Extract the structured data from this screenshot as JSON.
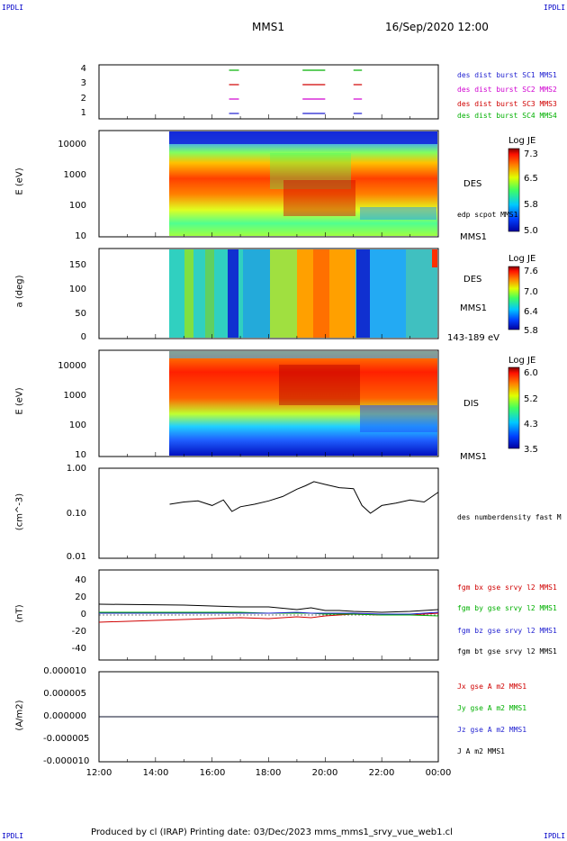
{
  "header": {
    "corner_left": "IPDLI",
    "corner_right": "IPDLI",
    "spacecraft": "MMS1",
    "datetime": "16/Sep/2020 12:00"
  },
  "x_axis": {
    "ticks": [
      "12:00",
      "14:00",
      "16:00",
      "18:00",
      "20:00",
      "22:00",
      "00:00"
    ]
  },
  "panel1": {
    "yticks": [
      "4",
      "3",
      "2",
      "1"
    ],
    "legend": [
      {
        "text": "des dist burst SC1 MMS1",
        "color": "#1f1fd0"
      },
      {
        "text": "des dist burst SC2 MMS2",
        "color": "#d000d0"
      },
      {
        "text": "des dist burst SC3 MMS3",
        "color": "#d00000"
      },
      {
        "text": "des dist burst SC4 MMS4",
        "color": "#00b000"
      }
    ],
    "segments_hours": [
      [
        16.6,
        16.95
      ],
      [
        19.2,
        20.0
      ],
      [
        21.0,
        21.3
      ]
    ]
  },
  "panel2": {
    "ylabel": "E (eV)",
    "yticks": [
      "10000",
      "1000",
      "100",
      "10"
    ],
    "label_right": "DES",
    "label_small": "edp scpot MMS1",
    "label_bottom": "MMS1",
    "colorbar": {
      "title": "Log JE",
      "ticks": [
        "7.3",
        "6.5",
        "5.8",
        "5.0"
      ]
    }
  },
  "panel3": {
    "ylabel": "a (deg)",
    "yticks": [
      "150",
      "100",
      "50",
      "0"
    ],
    "label_right": "DES",
    "label_mid": "MMS1",
    "label_bottom": "143-189 eV",
    "colorbar": {
      "title": "Log JE",
      "ticks": [
        "7.6",
        "7.0",
        "6.4",
        "5.8"
      ]
    }
  },
  "panel4": {
    "ylabel": "E (eV)",
    "yticks": [
      "10000",
      "1000",
      "100",
      "10"
    ],
    "label_right": "DIS",
    "label_bottom": "MMS1",
    "colorbar": {
      "title": "Log JE",
      "ticks": [
        "6.0",
        "5.2",
        "4.3",
        "3.5"
      ]
    }
  },
  "panel5": {
    "ylabel": "(cm^-3)",
    "yticks": [
      "1.00",
      "0.10",
      "0.01"
    ],
    "legend": "des numberdensity fast M"
  },
  "panel6": {
    "ylabel": "(nT)",
    "yticks": [
      "40",
      "20",
      "0",
      "-20",
      "-40"
    ],
    "legend": [
      {
        "text": "fgm bx gse srvy l2 MMS1",
        "color": "#d00000"
      },
      {
        "text": "fgm by gse srvy l2 MMS1",
        "color": "#00b000"
      },
      {
        "text": "fgm bz gse srvy l2 MMS1",
        "color": "#1f1fd0"
      },
      {
        "text": "fgm bt gse srvy l2 MMS1",
        "color": "#000000"
      }
    ]
  },
  "panel7": {
    "ylabel": "(A/m2)",
    "yticks": [
      "0.000010",
      "0.000005",
      "0.000000",
      "-0.000005",
      "-0.000010"
    ],
    "legend": [
      {
        "text": "Jx gse A m2 MMS1",
        "color": "#d00000"
      },
      {
        "text": "Jy gse A m2 MMS1",
        "color": "#00b000"
      },
      {
        "text": "Jz gse A m2 MMS1",
        "color": "#1f1fd0"
      },
      {
        "text": "J A m2 MMS1",
        "color": "#000000"
      }
    ]
  },
  "footer": "Produced by cl (IRAP)   Printing date: 03/Dec/2023   mms_mms1_srvy_vue_web1.cl",
  "chart_data": [
    {
      "type": "timeline",
      "title": "MMS1 16/Sep/2020 12:00",
      "x_range_hours": [
        12,
        24
      ],
      "series": [
        {
          "name": "des dist burst SC1 MMS1",
          "y": 1,
          "intervals": [
            [
              16.6,
              16.95
            ],
            [
              19.2,
              20.0
            ],
            [
              21.0,
              21.3
            ]
          ]
        },
        {
          "name": "des dist burst SC2 MMS2",
          "y": 2,
          "intervals": [
            [
              16.6,
              16.95
            ],
            [
              19.2,
              20.0
            ],
            [
              21.0,
              21.3
            ]
          ]
        },
        {
          "name": "des dist burst SC3 MMS3",
          "y": 3,
          "intervals": [
            [
              16.6,
              16.95
            ],
            [
              19.2,
              20.0
            ],
            [
              21.0,
              21.3
            ]
          ]
        },
        {
          "name": "des dist burst SC4 MMS4",
          "y": 4,
          "intervals": [
            [
              16.6,
              16.95
            ],
            [
              19.2,
              20.0
            ],
            [
              21.0,
              21.3
            ]
          ]
        }
      ]
    },
    {
      "type": "heatmap",
      "ylabel": "E (eV)",
      "yscale": "log",
      "ylim": [
        10,
        30000
      ],
      "data_start_hours": 14.5,
      "colorbar": "Log JE",
      "crange": [
        5.0,
        7.3
      ]
    },
    {
      "type": "heatmap",
      "ylabel": "a (deg)",
      "ylim": [
        0,
        180
      ],
      "data_start_hours": 14.5,
      "colorbar": "Log JE",
      "crange": [
        5.8,
        7.6
      ]
    },
    {
      "type": "heatmap",
      "ylabel": "E (eV)",
      "yscale": "log",
      "ylim": [
        10,
        30000
      ],
      "data_start_hours": 14.5,
      "colorbar": "Log JE",
      "crange": [
        3.5,
        6.0
      ]
    },
    {
      "type": "line",
      "ylabel": "(cm^-3)",
      "yscale": "log",
      "ylim": [
        0.01,
        1.0
      ],
      "series": [
        {
          "name": "des numberdensity fast M",
          "x": [
            14.5,
            15,
            15.5,
            16,
            16.4,
            16.7,
            17,
            17.5,
            18,
            18.5,
            19,
            19.3,
            19.6,
            20,
            20.5,
            21,
            21.3,
            21.6,
            22,
            22.5,
            23,
            23.5,
            24
          ],
          "y": [
            0.16,
            0.18,
            0.19,
            0.15,
            0.2,
            0.11,
            0.14,
            0.16,
            0.19,
            0.24,
            0.35,
            0.42,
            0.52,
            0.45,
            0.38,
            0.36,
            0.15,
            0.1,
            0.15,
            0.17,
            0.2,
            0.18,
            0.3
          ]
        }
      ]
    },
    {
      "type": "line",
      "ylabel": "(nT)",
      "ylim": [
        -50,
        50
      ],
      "x": [
        12.0,
        15,
        17,
        18,
        19,
        19.5,
        20,
        20.5,
        21,
        22,
        23,
        24
      ],
      "series": [
        {
          "name": "fgm bx gse srvy l2 MMS1",
          "y": [
            -8,
            -5,
            -3,
            -4,
            -2,
            -3,
            -1,
            0,
            1,
            0,
            0,
            2
          ]
        },
        {
          "name": "fgm by gse srvy l2 MMS1",
          "y": [
            3,
            3,
            3,
            2,
            2,
            2,
            1,
            1,
            1,
            0,
            0,
            -1
          ]
        },
        {
          "name": "fgm bz gse srvy l2 MMS1",
          "y": [
            2,
            2,
            2,
            2,
            3,
            2,
            2,
            2,
            2,
            1,
            1,
            3
          ]
        },
        {
          "name": "fgm bt gse srvy l2 MMS1",
          "y": [
            12,
            11,
            9,
            9,
            6,
            8,
            5,
            5,
            4,
            3,
            4,
            6
          ]
        }
      ]
    },
    {
      "type": "line",
      "ylabel": "(A/m2)",
      "ylim": [
        -1e-05,
        1e-05
      ],
      "x": [
        12,
        24
      ],
      "series": [
        {
          "name": "Jx gse A m2 MMS1",
          "y": [
            0,
            0
          ]
        },
        {
          "name": "Jy gse A m2 MMS1",
          "y": [
            0,
            0
          ]
        },
        {
          "name": "Jz gse A m2 MMS1",
          "y": [
            0,
            0
          ]
        },
        {
          "name": "J A m2 MMS1",
          "y": [
            0,
            0
          ]
        }
      ]
    }
  ]
}
